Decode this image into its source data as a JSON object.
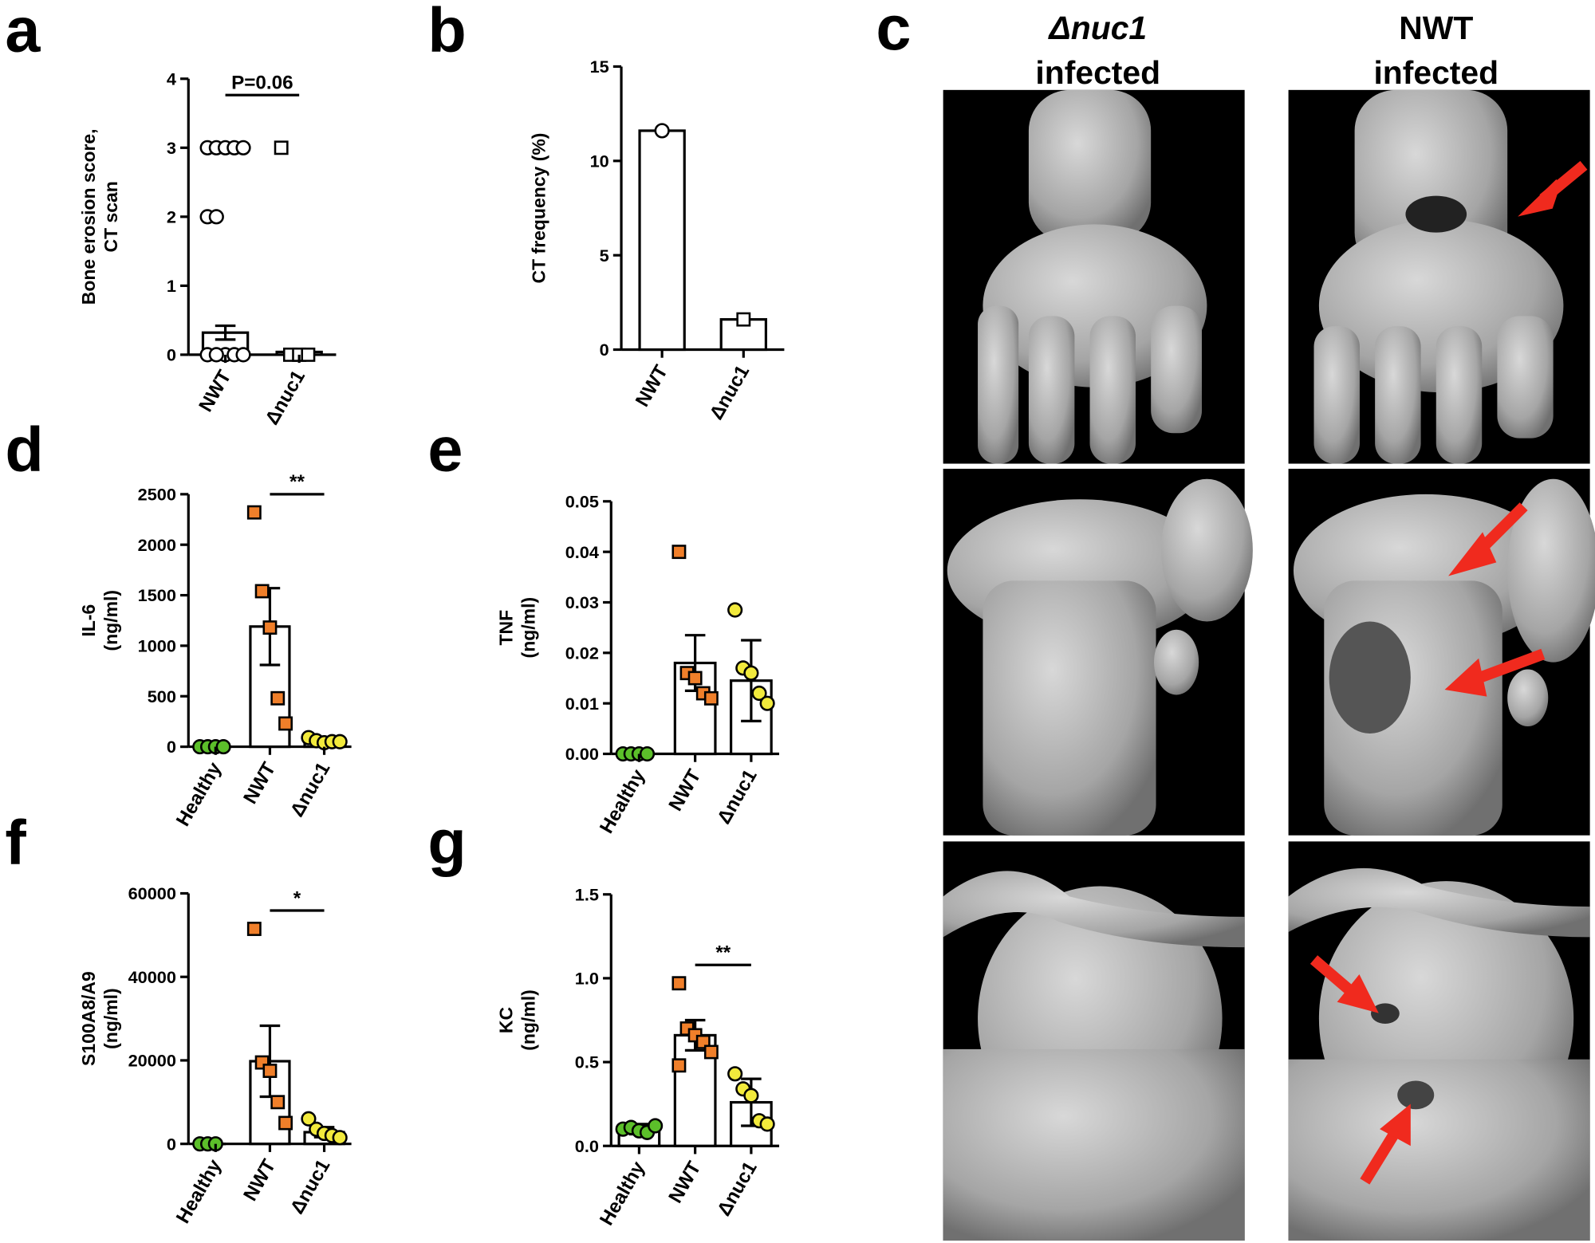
{
  "chart_data": [
    {
      "panel": "a",
      "type": "bar",
      "ylabel": [
        "Bone erosion score,",
        "CT scan"
      ],
      "categories": [
        "NWT",
        "Δnuc1"
      ],
      "values": [
        0.32,
        0.04
      ],
      "errors": [
        0.1,
        0.04
      ],
      "points": [
        [
          3,
          3,
          3,
          3,
          3,
          2,
          2,
          0,
          0,
          0,
          0,
          0
        ],
        [
          3,
          0,
          0,
          0
        ]
      ],
      "markers": [
        "circle",
        "square"
      ],
      "point_colors": [
        "#ffffff",
        "#ffffff"
      ],
      "ylim": [
        0,
        4
      ],
      "yticks": [
        0,
        1,
        2,
        3,
        4
      ],
      "annotation": "P=0.06"
    },
    {
      "panel": "b",
      "type": "bar",
      "ylabel": [
        "CT frequency (%)"
      ],
      "categories": [
        "NWT",
        "Δnuc1"
      ],
      "values": [
        11.6,
        1.6
      ],
      "points": [
        [
          11.6
        ],
        [
          1.6
        ]
      ],
      "markers": [
        "circle",
        "square"
      ],
      "point_colors": [
        "#ffffff",
        "#ffffff"
      ],
      "ylim": [
        0,
        15
      ],
      "yticks": [
        0,
        5,
        10,
        15
      ]
    },
    {
      "panel": "d",
      "type": "bar",
      "ylabel": [
        "IL-6",
        "(ng/ml)"
      ],
      "categories": [
        "Healthy",
        "NWT",
        "Δnuc1"
      ],
      "values": [
        0,
        1190,
        60
      ],
      "errors": [
        0,
        380,
        20
      ],
      "points": [
        [
          0,
          0,
          0,
          0
        ],
        [
          2320,
          1540,
          1180,
          480,
          230
        ],
        [
          90,
          60,
          40,
          50,
          50
        ]
      ],
      "markers": [
        "circle",
        "square",
        "circle"
      ],
      "point_colors": [
        "#5cbf2a",
        "#f07f2a",
        "#f2ea3c"
      ],
      "ylim": [
        0,
        2500
      ],
      "yticks": [
        0,
        500,
        1000,
        1500,
        2000,
        2500
      ],
      "annotation": "**"
    },
    {
      "panel": "e",
      "type": "bar",
      "ylabel": [
        "TNF",
        "(ng/ml)"
      ],
      "categories": [
        "Healthy",
        "NWT",
        "Δnuc1"
      ],
      "values": [
        0,
        0.018,
        0.0145
      ],
      "errors": [
        0,
        0.0055,
        0.008
      ],
      "points": [
        [
          0,
          0,
          0,
          0
        ],
        [
          0.04,
          0.016,
          0.015,
          0.012,
          0.011
        ],
        [
          0.0285,
          0.017,
          0.016,
          0.012,
          0.01
        ]
      ],
      "markers": [
        "circle",
        "square",
        "circle"
      ],
      "point_colors": [
        "#5cbf2a",
        "#f07f2a",
        "#f2ea3c"
      ],
      "ylim": [
        0,
        0.05
      ],
      "yticks": [
        {
          "value": 0,
          "label": "0.00"
        },
        0.01,
        0.02,
        0.03,
        0.04,
        0.05
      ]
    },
    {
      "panel": "f",
      "type": "bar",
      "ylabel": [
        "S100A8/A9",
        "(ng/ml)"
      ],
      "categories": [
        "Healthy",
        "NWT",
        "Δnuc1"
      ],
      "values": [
        0,
        19800,
        2800
      ],
      "errors": [
        0,
        8500,
        1200
      ],
      "points": [
        [
          0,
          0,
          0
        ],
        [
          51500,
          19500,
          17500,
          10000,
          5000
        ],
        [
          6000,
          3500,
          2500,
          2000,
          1500
        ]
      ],
      "markers": [
        "circle",
        "square",
        "circle"
      ],
      "point_colors": [
        "#5cbf2a",
        "#f07f2a",
        "#f2ea3c"
      ],
      "ylim": [
        0,
        60000
      ],
      "yticks": [
        0,
        20000,
        40000,
        60000
      ],
      "annotation": "*"
    },
    {
      "panel": "g",
      "type": "bar",
      "ylabel": [
        "KC",
        "(ng/ml)"
      ],
      "categories": [
        "Healthy",
        "NWT",
        "Δnuc1"
      ],
      "values": [
        0.1,
        0.66,
        0.26
      ],
      "errors": [
        0.03,
        0.09,
        0.14
      ],
      "points": [
        [
          0.1,
          0.11,
          0.09,
          0.08,
          0.12
        ],
        [
          0.97,
          0.7,
          0.66,
          0.62,
          0.56,
          0.48
        ],
        [
          0.43,
          0.34,
          0.3,
          0.15,
          0.13
        ]
      ],
      "markers": [
        "circle",
        "square",
        "circle"
      ],
      "point_colors": [
        "#5cbf2a",
        "#f07f2a",
        "#f2ea3c"
      ],
      "ylim": [
        0,
        1.5
      ],
      "yticks": [
        {
          "value": 0,
          "label": "0.0"
        },
        0.5,
        {
          "value": 1,
          "label": "1.0"
        },
        1.5
      ],
      "annotation": "**"
    }
  ],
  "image_panel": {
    "panel": "c",
    "columns": [
      [
        "Δnuc1",
        "infected"
      ],
      [
        "NWT",
        "infected"
      ]
    ]
  }
}
